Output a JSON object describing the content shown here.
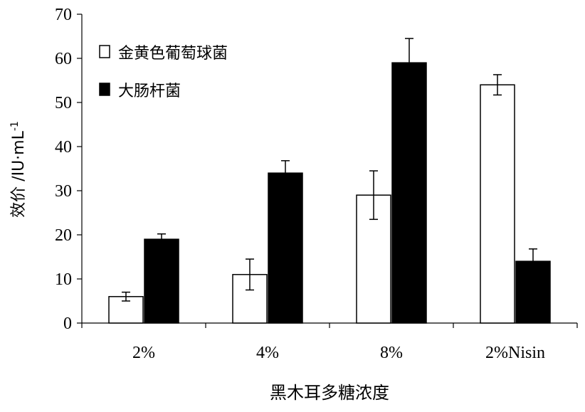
{
  "chart_data": {
    "type": "bar",
    "xlabel": "黑木耳多糖浓度",
    "ylabel": "效价 /IU·mL⁻¹",
    "ylim": [
      0,
      70
    ],
    "yticks": [
      0,
      10,
      20,
      30,
      40,
      50,
      60,
      70
    ],
    "categories": [
      "2%",
      "4%",
      "8%",
      "2%Nisin"
    ],
    "legend_position": "top-left",
    "grid": false,
    "series": [
      {
        "name": "金黄色葡萄球菌",
        "color": "#ffffff",
        "values": [
          6,
          11,
          29,
          54
        ],
        "errors": [
          1,
          3.5,
          5.5,
          2.3
        ]
      },
      {
        "name": "大肠杆菌",
        "color": "#000000",
        "values": [
          19,
          34,
          59,
          14
        ],
        "errors": [
          1.2,
          2.8,
          5.5,
          2.8
        ]
      }
    ]
  }
}
